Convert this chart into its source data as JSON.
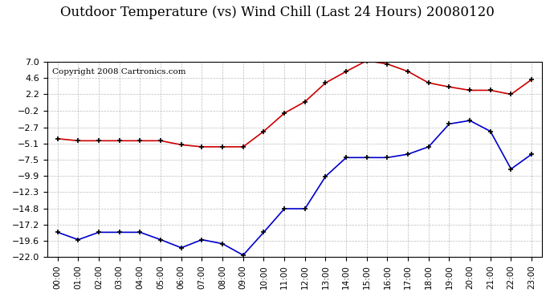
{
  "title": "Outdoor Temperature (vs) Wind Chill (Last 24 Hours) 20080120",
  "copyright": "Copyright 2008 Cartronics.com",
  "hours": [
    "00:00",
    "01:00",
    "02:00",
    "03:00",
    "04:00",
    "05:00",
    "06:00",
    "07:00",
    "08:00",
    "09:00",
    "10:00",
    "11:00",
    "12:00",
    "13:00",
    "14:00",
    "15:00",
    "16:00",
    "17:00",
    "18:00",
    "19:00",
    "20:00",
    "21:00",
    "22:00",
    "23:00"
  ],
  "temp_red": [
    -4.4,
    -4.7,
    -4.7,
    -4.7,
    -4.7,
    -4.7,
    -5.3,
    -5.6,
    -5.6,
    -5.6,
    -3.3,
    -0.6,
    1.1,
    3.9,
    5.6,
    7.2,
    6.7,
    5.6,
    3.9,
    3.3,
    2.8,
    2.8,
    2.2,
    4.4
  ],
  "wind_chill_blue": [
    -18.3,
    -19.4,
    -18.3,
    -18.3,
    -18.3,
    -19.4,
    -20.6,
    -19.4,
    -20.0,
    -21.7,
    -18.3,
    -14.8,
    -14.8,
    -10.0,
    -7.2,
    -7.2,
    -7.2,
    -6.7,
    -5.6,
    -2.2,
    -1.7,
    -3.3,
    -8.9,
    -6.7
  ],
  "ylim": [
    -22.0,
    7.0
  ],
  "yticks": [
    7.0,
    4.6,
    2.2,
    -0.2,
    -2.7,
    -5.1,
    -7.5,
    -9.9,
    -12.3,
    -14.8,
    -17.2,
    -19.6,
    -22.0
  ],
  "red_color": "#cc0000",
  "blue_color": "#0000cc",
  "grid_color": "#aaaaaa",
  "bg_color": "#ffffff",
  "title_fontsize": 12,
  "copyright_fontsize": 7.5
}
